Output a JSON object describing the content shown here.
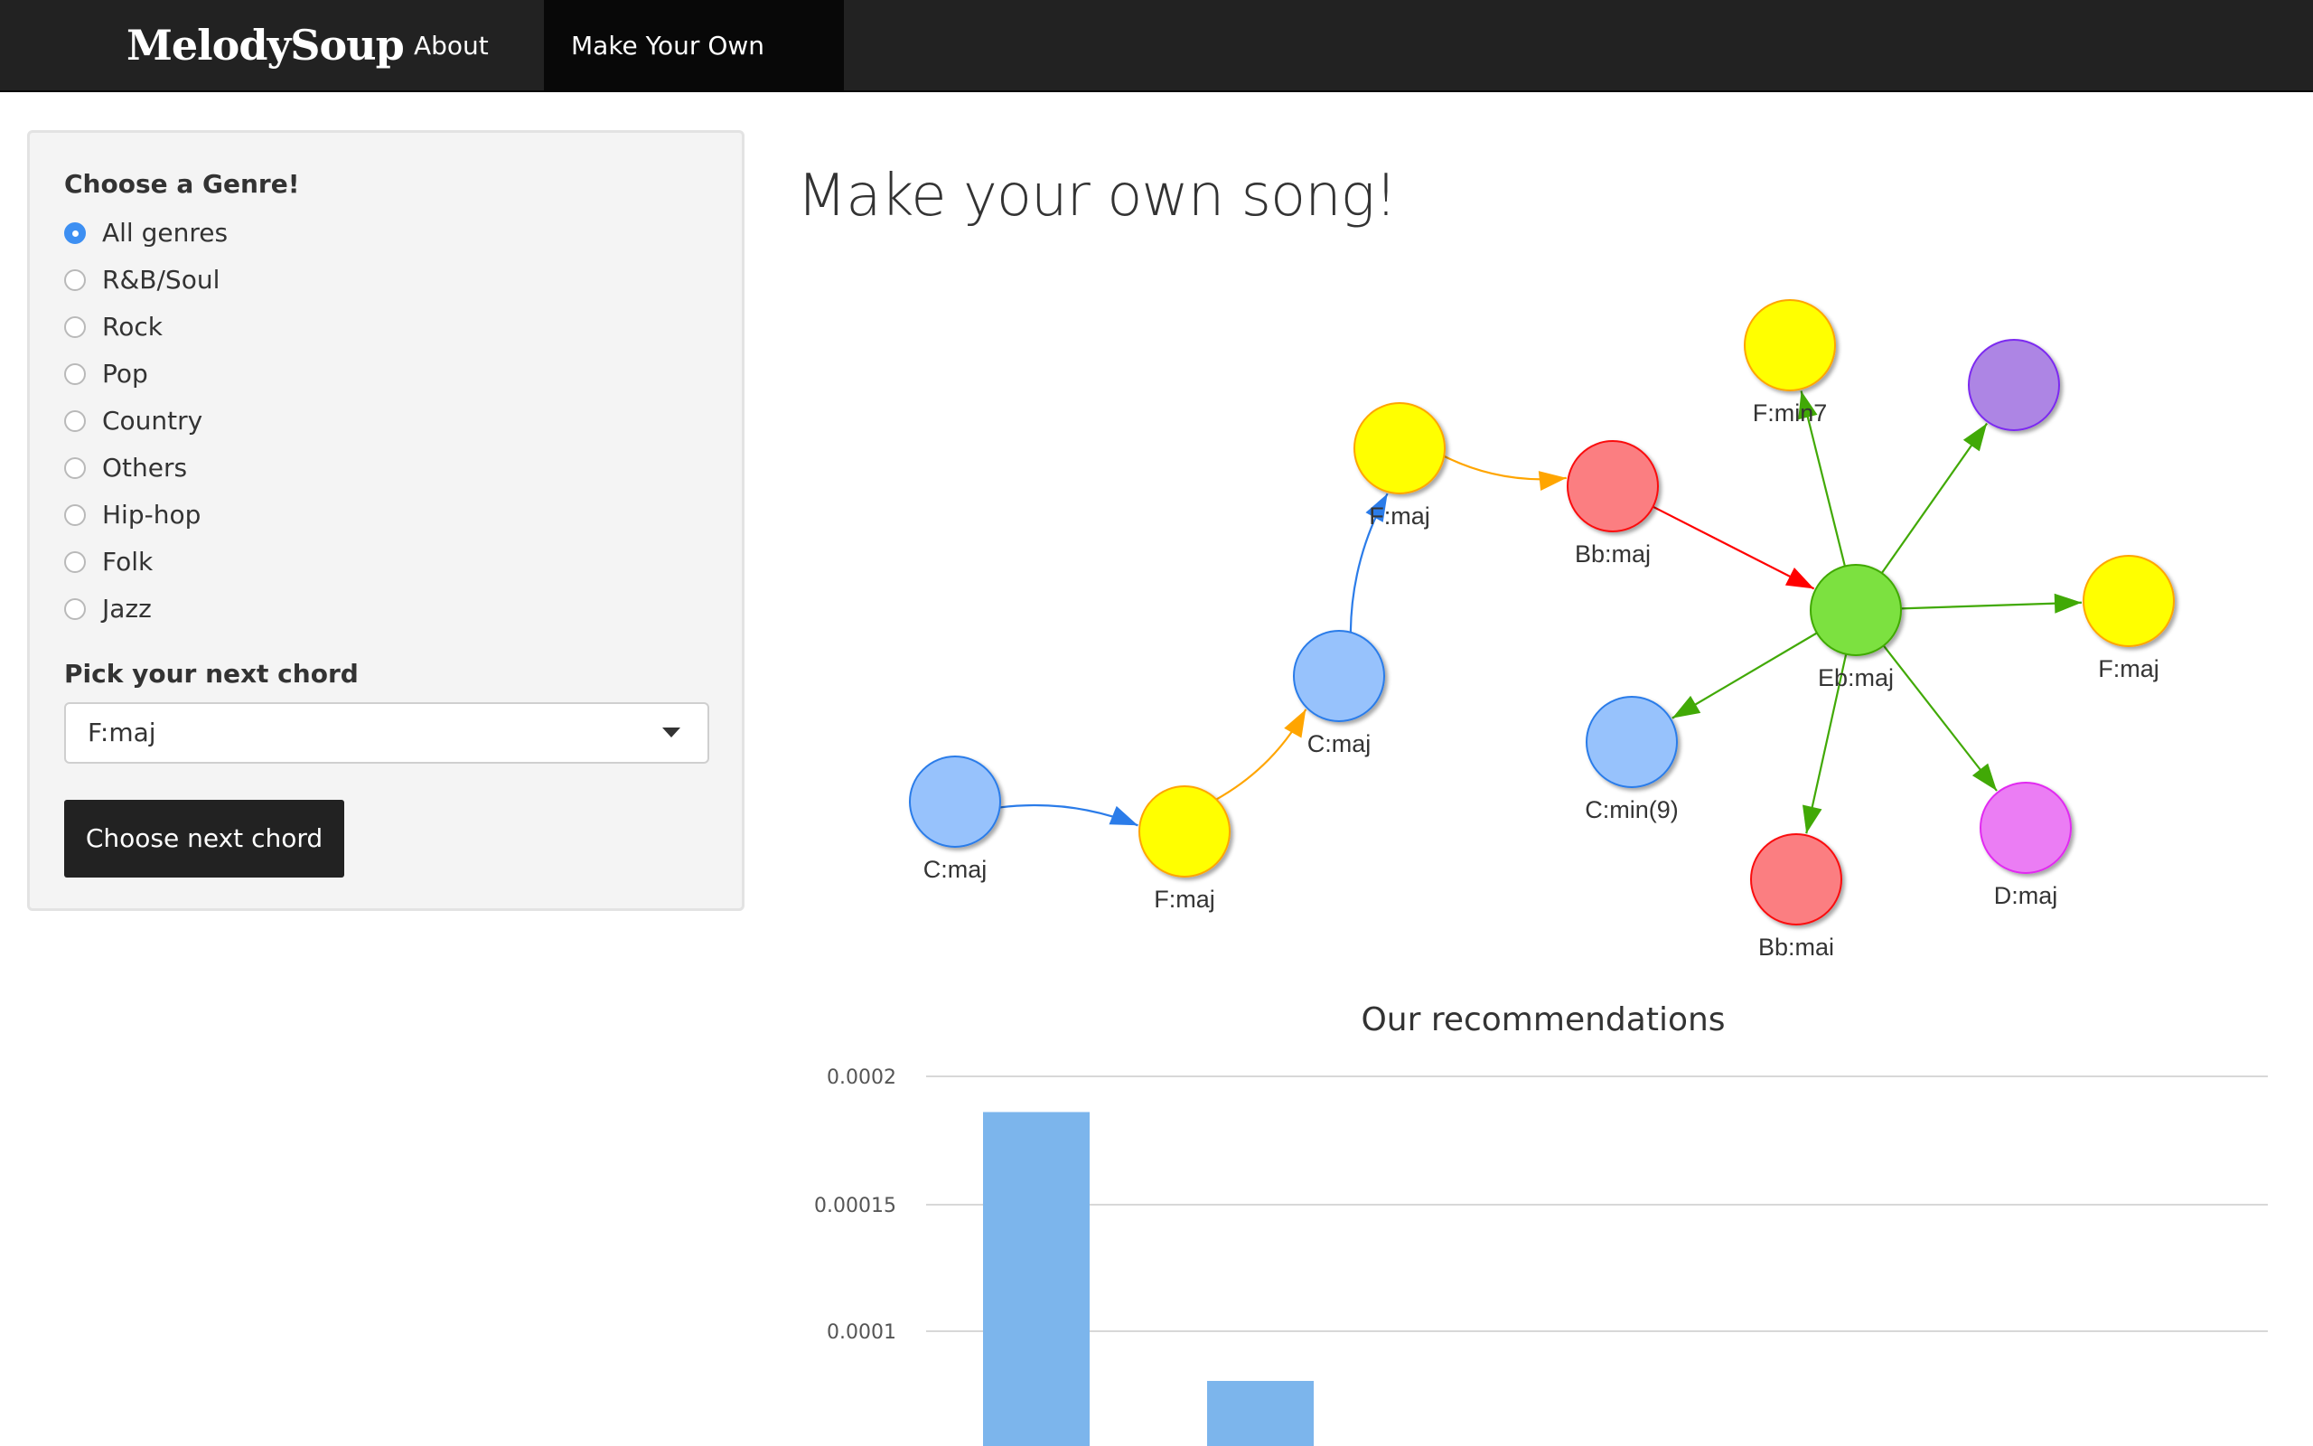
{
  "navbar": {
    "brand": "MelodySoup",
    "items": [
      {
        "label": "About Us",
        "active": false
      },
      {
        "label": "Make Your Own Song!",
        "active": true
      }
    ]
  },
  "sidebar": {
    "genre_label": "Choose a Genre!",
    "genres": [
      {
        "label": "All genres",
        "checked": true
      },
      {
        "label": "R&B/Soul",
        "checked": false
      },
      {
        "label": "Rock",
        "checked": false
      },
      {
        "label": "Pop",
        "checked": false
      },
      {
        "label": "Country",
        "checked": false
      },
      {
        "label": "Others",
        "checked": false
      },
      {
        "label": "Hip-hop",
        "checked": false
      },
      {
        "label": "Folk",
        "checked": false
      },
      {
        "label": "Jazz",
        "checked": false
      }
    ],
    "chord_label": "Pick your next chord",
    "chord_value": "F:maj",
    "button_label": "Choose next chord"
  },
  "main": {
    "title": "Make your own song!"
  },
  "graph": {
    "nodes": [
      {
        "id": "n1",
        "label": "C:maj",
        "color": "#97c2fc"
      },
      {
        "id": "n2",
        "label": "F:maj",
        "color": "#ffff00"
      },
      {
        "id": "n3",
        "label": "C:maj",
        "color": "#97c2fc"
      },
      {
        "id": "n4",
        "label": "F:maj",
        "color": "#ffff00"
      },
      {
        "id": "n5",
        "label": "Bb:maj",
        "color": "#fb7e81"
      },
      {
        "id": "n6",
        "label": "Eb:maj",
        "color": "#7be141"
      },
      {
        "id": "n7",
        "label": "F:min7",
        "color": "#ffff00"
      },
      {
        "id": "n8",
        "label": "",
        "color": "#ad85e4"
      },
      {
        "id": "n9",
        "label": "F:maj",
        "color": "#ffff00"
      },
      {
        "id": "n10",
        "label": "D:maj",
        "color": "#eb7df4"
      },
      {
        "id": "n11",
        "label": "Bb:mai",
        "color": "#fb7e81"
      },
      {
        "id": "n12",
        "label": "C:min(9)",
        "color": "#97c2fc"
      }
    ],
    "edges": [
      {
        "from": "n1",
        "to": "n2",
        "color": "#2b7ce9"
      },
      {
        "from": "n2",
        "to": "n3",
        "color": "#ffa500"
      },
      {
        "from": "n3",
        "to": "n4",
        "color": "#2b7ce9"
      },
      {
        "from": "n4",
        "to": "n5",
        "color": "#ffa500"
      },
      {
        "from": "n5",
        "to": "n6",
        "color": "#ff0000"
      },
      {
        "from": "n6",
        "to": "n7",
        "color": "#41a906"
      },
      {
        "from": "n6",
        "to": "n8",
        "color": "#41a906"
      },
      {
        "from": "n6",
        "to": "n9",
        "color": "#41a906"
      },
      {
        "from": "n6",
        "to": "n10",
        "color": "#41a906"
      },
      {
        "from": "n6",
        "to": "n11",
        "color": "#41a906"
      },
      {
        "from": "n6",
        "to": "n12",
        "color": "#41a906"
      }
    ]
  },
  "chart_data": {
    "type": "bar",
    "title": "Our recommendations",
    "y_ticks": [
      "0.0002",
      "0.00015",
      "0.0001"
    ],
    "ylim": [
      0.0001,
      0.0002
    ],
    "values": [
      0.000186,
      8.05e-05
    ],
    "bar_color": "#7cb5ec",
    "grid": true
  }
}
